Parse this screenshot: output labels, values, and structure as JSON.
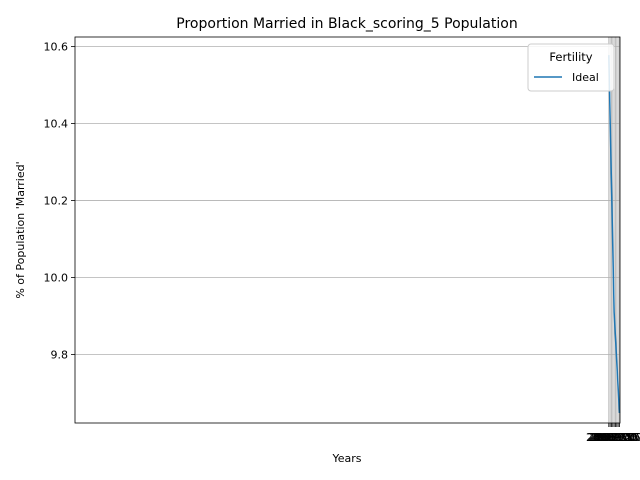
{
  "chart_data": {
    "type": "line",
    "title": "Proportion Married in Black_scoring_5 Population",
    "xlabel": "Years",
    "ylabel": "% of Population 'Married'",
    "xlim": [
      1967.9,
      2070.1
    ],
    "ylim": [
      9.622,
      10.625
    ],
    "x_ticks": [
      2068.0,
      2068.25,
      2068.5,
      2068.75,
      2069.0,
      2069.25,
      2069.5,
      2069.75,
      2070.0
    ],
    "x_tick_labels": [
      "2068.00",
      "2068.25",
      "2068.50",
      "2068.75",
      "2069.00",
      "2069.25",
      "2069.50",
      "2069.75",
      "2070.00"
    ],
    "y_ticks": [
      9.8,
      10.0,
      10.2,
      10.4,
      10.6
    ],
    "y_tick_labels": [
      "9.8",
      "10.0",
      "10.2",
      "10.4",
      "10.6"
    ],
    "grid": true,
    "legend": {
      "title": "Fertility",
      "placement": "top-right"
    },
    "series": [
      {
        "name": "Ideal",
        "color": "#1f77b4",
        "x": [
          2068,
          2069,
          2070
        ],
        "y": [
          10.578,
          9.91,
          9.648
        ]
      }
    ]
  }
}
